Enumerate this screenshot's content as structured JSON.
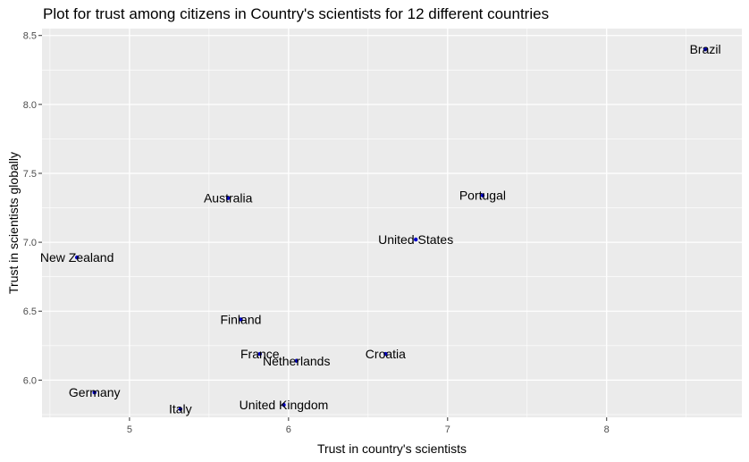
{
  "chart_data": {
    "type": "scatter",
    "title": "Plot for trust among citizens in Country's scientists for 12 different countries",
    "xlabel": "Trust in country's scientists",
    "ylabel": "Trust in scientists globally",
    "xlim": [
      4.45,
      8.85
    ],
    "ylim": [
      5.73,
      8.55
    ],
    "xticks": [
      5,
      6,
      7,
      8
    ],
    "yticks": [
      6.0,
      6.5,
      7.0,
      7.5,
      8.0,
      8.5
    ],
    "xtick_labels": [
      "5",
      "6",
      "7",
      "8"
    ],
    "ytick_labels": [
      "6.0",
      "6.5",
      "7.0",
      "7.5",
      "8.0",
      "8.5"
    ],
    "grid": true,
    "point_color": "#0000cc",
    "panel_background": "#ebebeb",
    "grid_color": "#ffffff",
    "points": [
      {
        "label": "Brazil",
        "x": 8.62,
        "y": 8.4
      },
      {
        "label": "Australia",
        "x": 5.62,
        "y": 7.32
      },
      {
        "label": "Portugal",
        "x": 7.22,
        "y": 7.34
      },
      {
        "label": "United States",
        "x": 6.8,
        "y": 7.02
      },
      {
        "label": "New Zealand",
        "x": 4.67,
        "y": 6.89
      },
      {
        "label": "Finland",
        "x": 5.7,
        "y": 6.44
      },
      {
        "label": "France",
        "x": 5.82,
        "y": 6.19
      },
      {
        "label": "Netherlands",
        "x": 6.05,
        "y": 6.14
      },
      {
        "label": "Croatia",
        "x": 6.61,
        "y": 6.19
      },
      {
        "label": "Germany",
        "x": 4.78,
        "y": 5.91
      },
      {
        "label": "Italy",
        "x": 5.32,
        "y": 5.79
      },
      {
        "label": "United Kingdom",
        "x": 5.97,
        "y": 5.82
      }
    ]
  }
}
